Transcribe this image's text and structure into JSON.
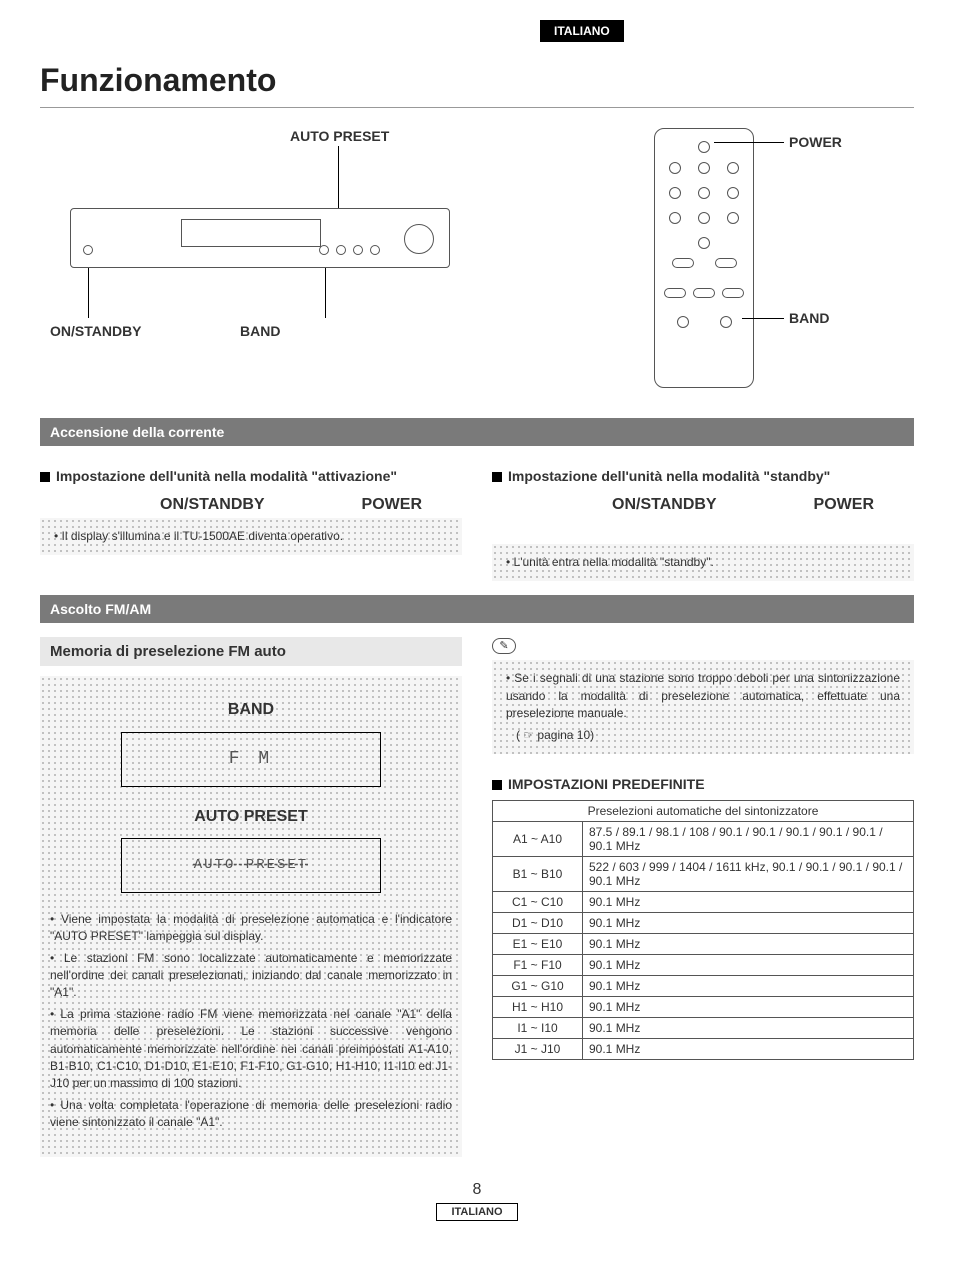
{
  "lang_tab": "ITALIANO",
  "title": "Funzionamento",
  "diagrams": {
    "device": {
      "auto_preset": "AUTO PRESET",
      "on_standby": "ON/STANDBY",
      "band": "BAND"
    },
    "remote": {
      "power": "POWER",
      "band": "BAND"
    }
  },
  "section1": {
    "bar": "Accensione della corrente",
    "left_h": "Impostazione dell'unità nella modalità \"attivazione\"",
    "left_action1": "ON/STANDBY",
    "left_action2": "POWER",
    "left_note": "Il display s'illumina e il TU-1500AE diventa operativo.",
    "right_h": "Impostazione dell'unità nella modalità \"standby\"",
    "right_action1": "ON/STANDBY",
    "right_action2": "POWER",
    "right_note": "L'unità entra nella modalità \"standby\"."
  },
  "section2": {
    "bar": "Ascolto FM/AM",
    "subtitle": "Memoria di preselezione FM auto",
    "band_label": "BAND",
    "fm_display": "F M",
    "autopreset_label": "AUTO PRESET",
    "autopreset_display": "AUTO PRESET",
    "bullets": [
      "Viene impostata la modalità di preselezione automatica e l'indicatore \"AUTO PRESET\" lampeggia sul display.",
      "Le stazioni FM sono localizzate automaticamente e memorizzate nell'ordine dei canali preselezionati, iniziando dal canale memorizzato in \"A1\".",
      "La prima stazione radio FM viene memorizzata nel canale \"A1\" della memoria delle preselezioni. Le stazioni successive vengono automaticamente memorizzate nell'ordine nei canali preimpostati A1-A10, B1-B10, C1-C10, D1-D10, E1-E10, F1-F10, G1-G10, H1-H10, I1-I10 ed J1-J10 per un massimo di 100 stazioni.",
      "Una volta completata l'operazione di memoria delle preselezioni radio viene sintonizzato il canale \"A1\"."
    ],
    "note_text": "Se i segnali di una stazione sono troppo deboli per una sintonizzazione usando la modalità di preselezione automatica, effettuate una preselezione manuale.",
    "note_ref": "pagina 10",
    "defaults_h": "IMPOSTAZIONI PREDEFINITE",
    "table_caption": "Preselezioni automatiche del sintonizzatore",
    "table_rows": [
      {
        "range": "A1 ~ A10",
        "val": "87.5 / 89.1 / 98.1 / 108 / 90.1 / 90.1 / 90.1 / 90.1 / 90.1 / 90.1 MHz"
      },
      {
        "range": "B1 ~ B10",
        "val": "522 / 603 / 999 / 1404 / 1611 kHz, 90.1 / 90.1 / 90.1 / 90.1 / 90.1 MHz"
      },
      {
        "range": "C1 ~ C10",
        "val": "90.1 MHz"
      },
      {
        "range": "D1 ~ D10",
        "val": "90.1 MHz"
      },
      {
        "range": "E1 ~ E10",
        "val": "90.1 MHz"
      },
      {
        "range": "F1 ~ F10",
        "val": "90.1 MHz"
      },
      {
        "range": "G1 ~ G10",
        "val": "90.1 MHz"
      },
      {
        "range": "H1 ~ H10",
        "val": "90.1 MHz"
      },
      {
        "range": "I1 ~ I10",
        "val": "90.1 MHz"
      },
      {
        "range": "J1 ~ J10",
        "val": "90.1 MHz"
      }
    ]
  },
  "footer": {
    "page": "8",
    "lang": "ITALIANO"
  },
  "colors": {
    "section_bar_bg": "#7a7a7a",
    "section_bar_fg": "#ffffff",
    "subsection_bg": "#e8e8e8",
    "text": "#333333",
    "border": "#555555"
  }
}
